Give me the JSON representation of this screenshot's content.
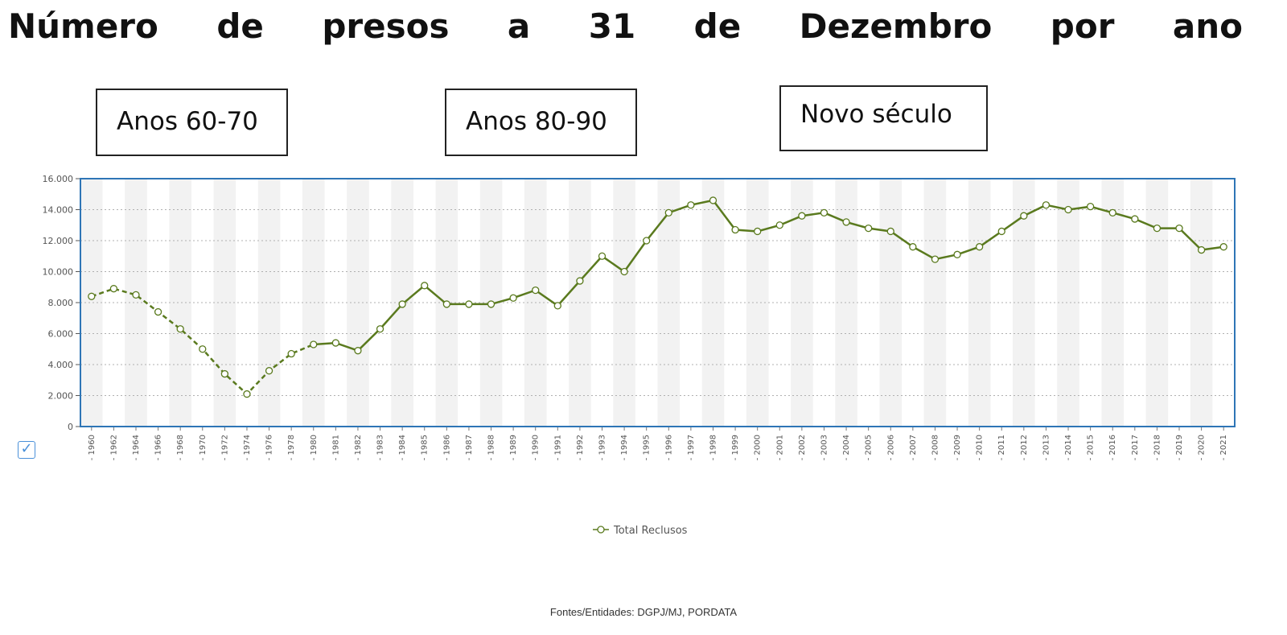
{
  "page": {
    "title": "Número de presos a 31 de Dezembro por ano",
    "period_boxes": [
      "Anos 60-70",
      "Anos 80-90",
      "Novo século"
    ],
    "checkbox_checked": true,
    "checkbox_icon": "check-icon",
    "source": "Fontes/Entidades: DGPJ/MJ, PORDATA"
  },
  "colors": {
    "series_line": "#5a7a1e",
    "marker_fill": "#ffffff",
    "plot_border": "#2e75b6",
    "band_shade": "#f2f2f2",
    "grid": "#b0b0b0",
    "checkbox": "#4a90d9"
  },
  "chart_data": {
    "type": "line",
    "title": "",
    "xlabel": "",
    "ylabel": "",
    "ylim": [
      0,
      16000
    ],
    "y_ticks": [
      "0",
      "2.000",
      "4.000",
      "6.000",
      "8.000",
      "10.000",
      "12.000",
      "14.000",
      "16.000"
    ],
    "grid": true,
    "legend_position": "bottom-center",
    "categories": [
      "1960",
      "1962",
      "1964",
      "1966",
      "1968",
      "1970",
      "1972",
      "1974",
      "1976",
      "1978",
      "1980",
      "1981",
      "1982",
      "1983",
      "1984",
      "1985",
      "1986",
      "1987",
      "1988",
      "1989",
      "1990",
      "1991",
      "1992",
      "1993",
      "1994",
      "1995",
      "1996",
      "1997",
      "1998",
      "1999",
      "2000",
      "2001",
      "2002",
      "2003",
      "2004",
      "2005",
      "2006",
      "2007",
      "2008",
      "2009",
      "2010",
      "2011",
      "2012",
      "2013",
      "2014",
      "2015",
      "2016",
      "2017",
      "2018",
      "2019",
      "2020",
      "2021"
    ],
    "series": [
      {
        "name": "Total Reclusos",
        "values": [
          8400,
          8900,
          8500,
          7400,
          6300,
          5000,
          3400,
          2100,
          3600,
          4700,
          5300,
          5400,
          4900,
          6300,
          7900,
          9100,
          7900,
          7900,
          7900,
          8300,
          8800,
          7800,
          9400,
          11000,
          10000,
          12000,
          13800,
          14300,
          14600,
          12700,
          12600,
          13000,
          13600,
          13800,
          13200,
          12800,
          12600,
          11600,
          10800,
          11100,
          11600,
          12600,
          13600,
          14300,
          14000,
          14200,
          13800,
          13400,
          12800,
          12800,
          11400,
          11600
        ],
        "dashed_until_category": "1980"
      }
    ]
  }
}
